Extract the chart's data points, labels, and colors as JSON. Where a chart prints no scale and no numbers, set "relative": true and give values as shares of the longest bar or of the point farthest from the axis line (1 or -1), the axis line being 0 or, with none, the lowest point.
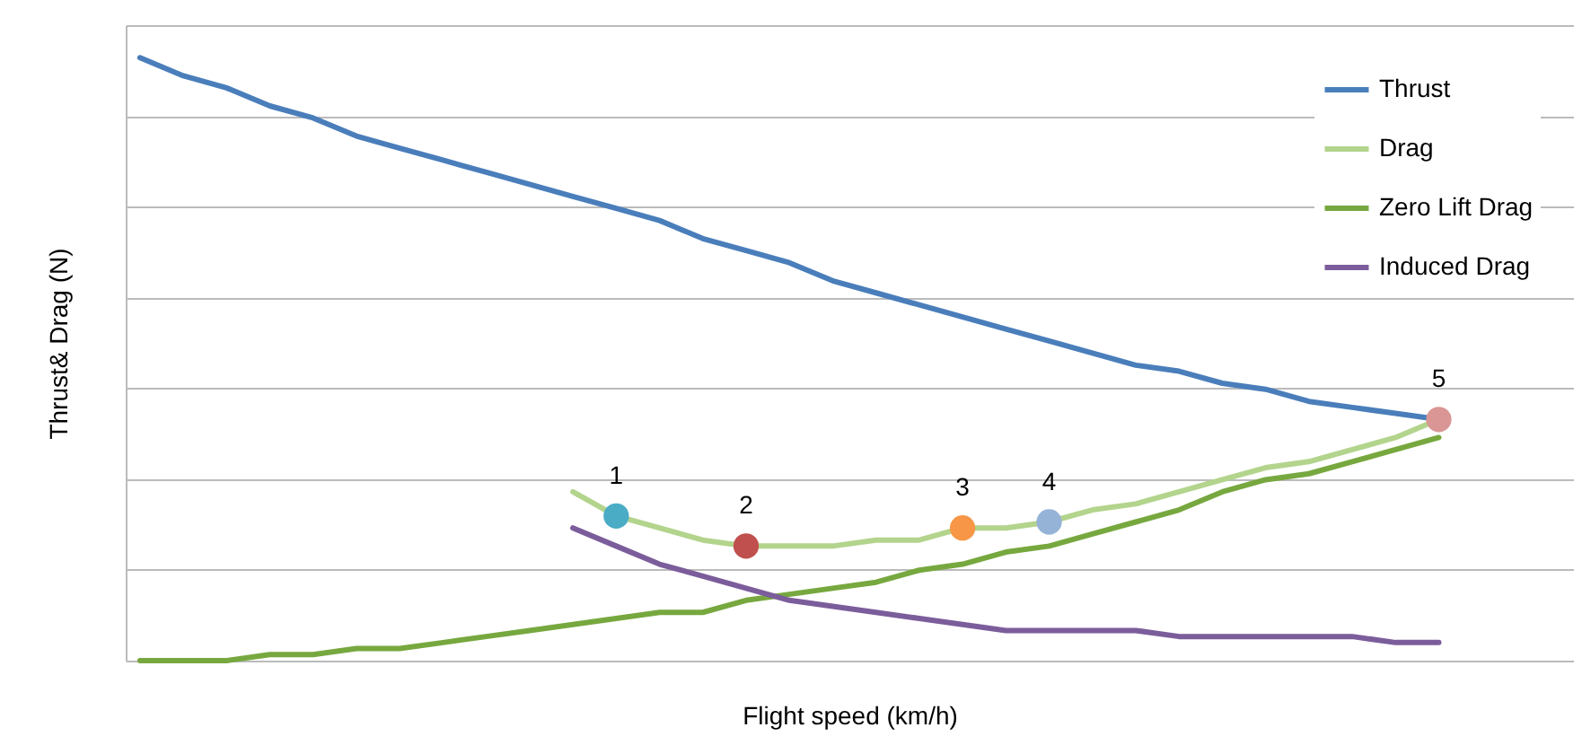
{
  "chart_data": {
    "type": "line",
    "relative": true,
    "xlabel": "Flight speed (km/h)",
    "ylabel": "Thrust& Drag (N)",
    "categories": [
      null,
      null,
      null,
      null,
      null,
      null,
      null,
      null,
      null,
      null,
      null,
      null,
      null,
      null,
      null,
      null,
      null,
      null,
      null,
      null,
      null,
      null,
      null,
      null,
      null,
      null,
      null,
      null,
      null,
      null,
      null
    ],
    "series": [
      {
        "name": "Thrust",
        "color": "#4a7ebb",
        "values": [
          1.0,
          0.97,
          0.95,
          0.92,
          0.9,
          0.87,
          0.85,
          0.83,
          0.81,
          0.79,
          0.77,
          0.75,
          0.73,
          0.7,
          0.68,
          0.66,
          0.63,
          0.61,
          0.59,
          0.57,
          0.55,
          0.53,
          0.51,
          0.49,
          0.48,
          0.46,
          0.45,
          0.43,
          0.42,
          0.41,
          0.4
        ]
      },
      {
        "name": "Drag",
        "color": "#b3d48c",
        "colors": [
          null,
          null,
          null,
          null,
          null,
          null,
          null,
          null,
          null,
          null,
          null,
          "#4bacc6",
          null,
          null,
          "#c0504d",
          null,
          null,
          null,
          null,
          "#f79646",
          null,
          "#95b3d7",
          null,
          null,
          null,
          null,
          null,
          null,
          null,
          null,
          "#d99694"
        ],
        "values": [
          null,
          null,
          null,
          null,
          null,
          null,
          null,
          null,
          null,
          null,
          0.28,
          0.24,
          0.22,
          0.2,
          0.19,
          0.19,
          0.19,
          0.2,
          0.2,
          0.22,
          0.22,
          0.23,
          0.25,
          0.26,
          0.28,
          0.3,
          0.32,
          0.33,
          0.35,
          0.37,
          0.4
        ]
      },
      {
        "name": "Zero Lift Drag",
        "color": "#77a83f",
        "values": [
          0.0,
          0.0,
          0.0,
          0.01,
          0.01,
          0.02,
          0.02,
          0.03,
          0.04,
          0.05,
          0.06,
          0.07,
          0.08,
          0.08,
          0.1,
          0.11,
          0.12,
          0.13,
          0.15,
          0.16,
          0.18,
          0.19,
          0.21,
          0.23,
          0.25,
          0.28,
          0.3,
          0.31,
          0.33,
          0.35,
          0.37
        ]
      },
      {
        "name": "Induced Drag",
        "color": "#7c5d9b",
        "values": [
          null,
          null,
          null,
          null,
          null,
          null,
          null,
          null,
          null,
          null,
          0.22,
          0.19,
          0.16,
          0.14,
          0.12,
          0.1,
          0.09,
          0.08,
          0.07,
          0.06,
          0.05,
          0.05,
          0.05,
          0.05,
          0.04,
          0.04,
          0.04,
          0.04,
          0.04,
          0.03,
          0.03
        ]
      }
    ],
    "annotations": [
      "1",
      "2",
      "3",
      "4",
      "5"
    ],
    "grid": "y",
    "legend": "top right",
    "tick_labels": false,
    "line_style": "solid"
  }
}
